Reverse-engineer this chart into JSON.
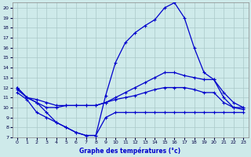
{
  "title": "Graphe des températures (°c)",
  "bg_color": "#ceeaea",
  "line_color": "#0000cc",
  "grid_color": "#aac8c8",
  "xlim": [
    -0.5,
    23.5
  ],
  "ylim": [
    7,
    20.5
  ],
  "xticks": [
    0,
    1,
    2,
    3,
    4,
    5,
    6,
    7,
    8,
    9,
    10,
    11,
    12,
    13,
    14,
    15,
    16,
    17,
    18,
    19,
    20,
    21,
    22,
    23
  ],
  "yticks": [
    7,
    8,
    9,
    10,
    11,
    12,
    13,
    14,
    15,
    16,
    17,
    18,
    19,
    20
  ],
  "line1_x": [
    0,
    1,
    2,
    3,
    4,
    5,
    6,
    7,
    8,
    9,
    10,
    11,
    12,
    13,
    14,
    15,
    16,
    17,
    18,
    19,
    20,
    21,
    22,
    23
  ],
  "line1_y": [
    12,
    11,
    10.5,
    9.5,
    8.5,
    8.0,
    7.5,
    7.2,
    7.2,
    11.2,
    14.5,
    16.5,
    17.5,
    18.2,
    18.8,
    20.0,
    20.5,
    19.0,
    16.0,
    13.5,
    12.8,
    11.0,
    10.0,
    10.0
  ],
  "line2_x": [
    0,
    1,
    2,
    3,
    4,
    5,
    6,
    7,
    8,
    9,
    10,
    11,
    12,
    13,
    14,
    15,
    16,
    17,
    18,
    19,
    20,
    21,
    22,
    23
  ],
  "line2_y": [
    12,
    11,
    10.5,
    10.0,
    10.0,
    10.2,
    10.2,
    10.2,
    10.2,
    10.5,
    11.0,
    11.5,
    12.0,
    12.5,
    13.0,
    13.5,
    13.5,
    13.2,
    13.0,
    12.8,
    12.8,
    11.5,
    10.5,
    10.0
  ],
  "line3_x": [
    0,
    1,
    2,
    3,
    4,
    5,
    6,
    7,
    8,
    9,
    10,
    11,
    12,
    13,
    14,
    15,
    16,
    17,
    18,
    19,
    20,
    21,
    22,
    23
  ],
  "line3_y": [
    11.8,
    11.0,
    10.8,
    10.5,
    10.2,
    10.2,
    10.2,
    10.2,
    10.2,
    10.5,
    10.8,
    11.0,
    11.2,
    11.5,
    11.8,
    12.0,
    12.0,
    12.0,
    11.8,
    11.5,
    11.5,
    10.5,
    10.0,
    9.8
  ],
  "line4_x": [
    0,
    1,
    2,
    3,
    4,
    5,
    6,
    7,
    8,
    9,
    10,
    11,
    12,
    13,
    14,
    15,
    16,
    17,
    18,
    19,
    20,
    21,
    22,
    23
  ],
  "line4_y": [
    11.5,
    10.8,
    9.5,
    9.0,
    8.5,
    8.0,
    7.5,
    7.2,
    7.2,
    9.0,
    9.5,
    9.5,
    9.5,
    9.5,
    9.5,
    9.5,
    9.5,
    9.5,
    9.5,
    9.5,
    9.5,
    9.5,
    9.5,
    9.5
  ]
}
